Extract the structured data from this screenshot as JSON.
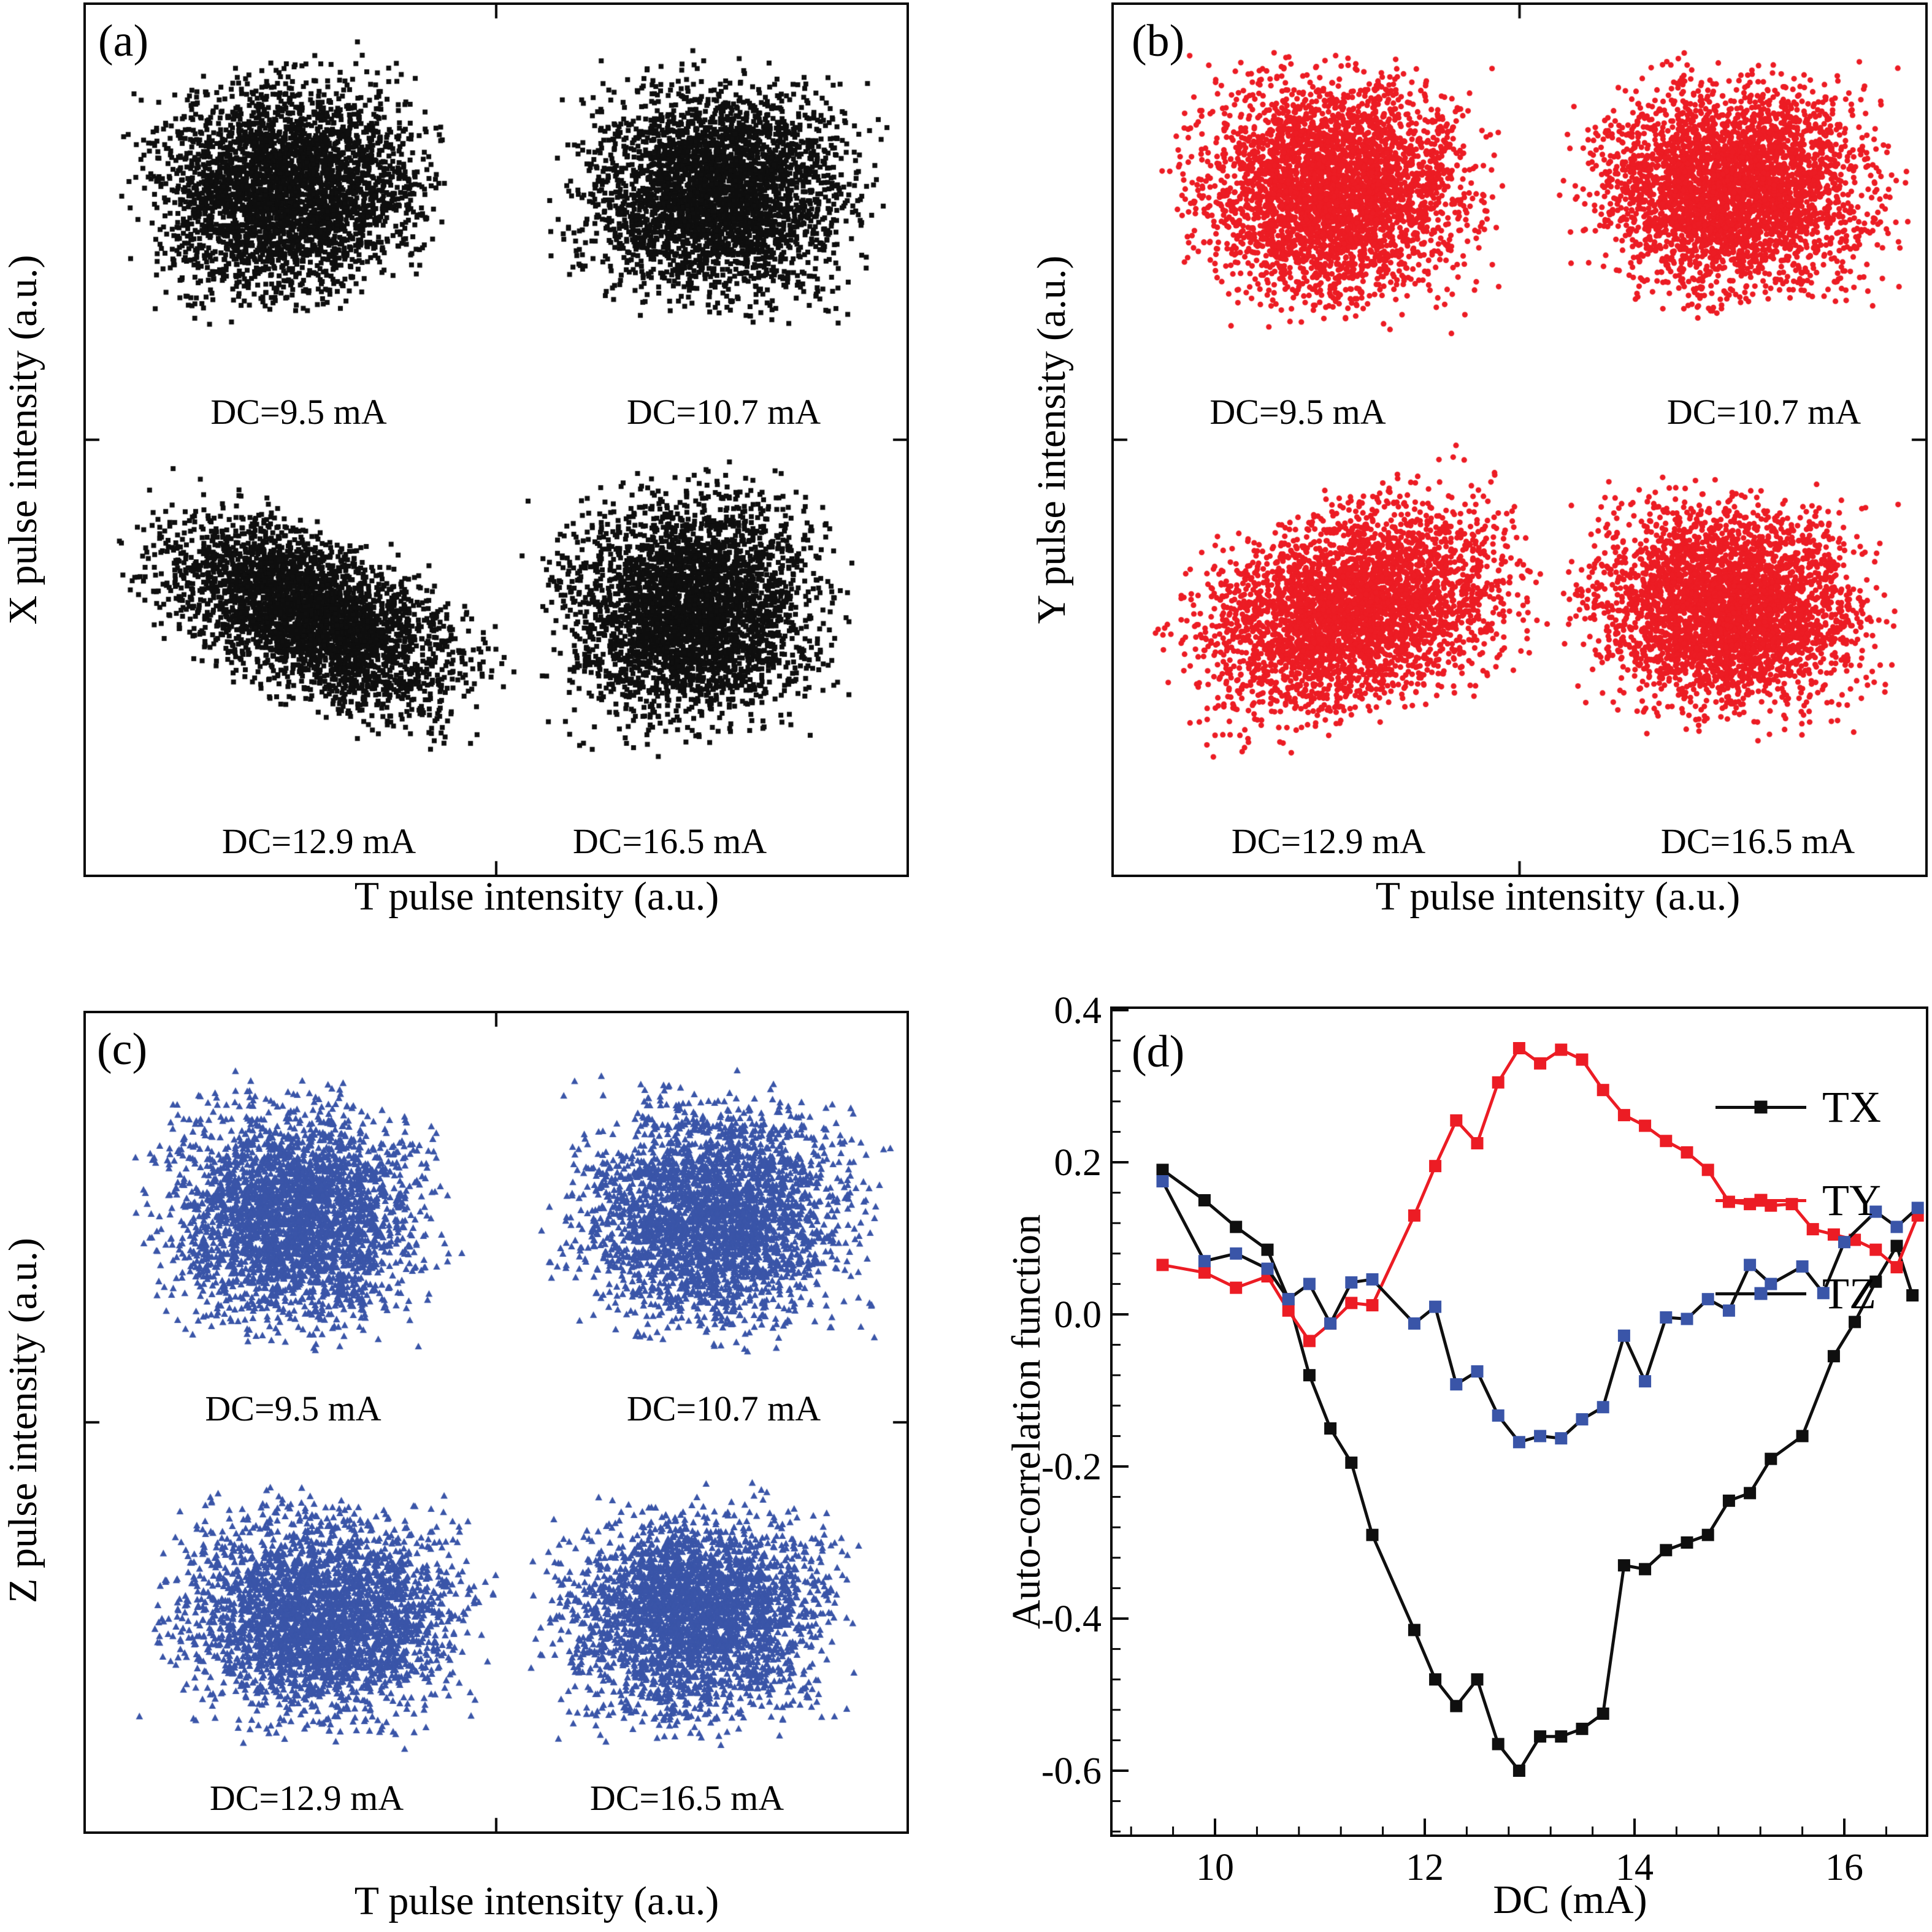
{
  "figure": {
    "dc_labels": [
      "DC=9.5 mA",
      "DC=10.7 mA",
      "DC=12.9 mA",
      "DC=16.5 mA"
    ],
    "colors": {
      "black_marker": "#0f0f0f",
      "red_marker": "#ec1c24",
      "blue_marker": "#3a55a8",
      "axis": "#0a0a0a"
    }
  },
  "chart_data": [
    {
      "type": "scatter",
      "panel_label": "(a)",
      "xlabel": "T pulse intensity (a.u.)",
      "ylabel": "X pulse intensity (a.u.)",
      "marker": "square",
      "color": "#0f0f0f",
      "clusters": [
        {
          "label": "DC=9.5 mA",
          "lx": 347,
          "ly": 664,
          "cx": 330,
          "cy": 300,
          "rx": 295,
          "ry": 235,
          "angle_deg": -10,
          "n": 3400
        },
        {
          "label": "DC=10.7 mA",
          "lx": 1040,
          "ly": 664,
          "cx": 1030,
          "cy": 305,
          "rx": 290,
          "ry": 240,
          "angle_deg": 6,
          "n": 3400
        },
        {
          "label": "DC=12.9 mA",
          "lx": 380,
          "ly": 1364,
          "cx": 370,
          "cy": 995,
          "rx": 360,
          "ry": 165,
          "angle_deg": 25,
          "n": 3400
        },
        {
          "label": "DC=16.5 mA",
          "lx": 952,
          "ly": 1364,
          "cx": 990,
          "cy": 985,
          "rx": 285,
          "ry": 250,
          "angle_deg": -6,
          "n": 3400
        }
      ]
    },
    {
      "type": "scatter",
      "panel_label": "(b)",
      "xlabel": "T pulse intensity (a.u.)",
      "ylabel": "Y pulse intensity (a.u.)",
      "marker": "circle",
      "color": "#ec1c24",
      "clusters": [
        {
          "label": "DC=9.5 mA",
          "lx": 300,
          "ly": 664,
          "cx": 360,
          "cy": 300,
          "rx": 295,
          "ry": 245,
          "angle_deg": 4,
          "n": 3600
        },
        {
          "label": "DC=10.7 mA",
          "lx": 1060,
          "ly": 664,
          "cx": 1010,
          "cy": 300,
          "rx": 300,
          "ry": 235,
          "angle_deg": 2,
          "n": 3600
        },
        {
          "label": "DC=12.9 mA",
          "lx": 350,
          "ly": 1364,
          "cx": 390,
          "cy": 985,
          "rx": 345,
          "ry": 210,
          "angle_deg": -20,
          "n": 3600
        },
        {
          "label": "DC=16.5 mA",
          "lx": 1050,
          "ly": 1364,
          "cx": 1000,
          "cy": 980,
          "rx": 300,
          "ry": 228,
          "angle_deg": 4,
          "n": 3600
        }
      ]
    },
    {
      "type": "scatter",
      "panel_label": "(c)",
      "xlabel": "T pulse intensity (a.u.)",
      "ylabel": "Z pulse intensity (a.u.)",
      "marker": "triangle",
      "color": "#3a55a8",
      "clusters": [
        {
          "label": "DC=9.5 mA",
          "lx": 338,
          "ly": 645,
          "cx": 340,
          "cy": 330,
          "rx": 282,
          "ry": 243,
          "angle_deg": 0,
          "n": 3000
        },
        {
          "label": "DC=10.7 mA",
          "lx": 1040,
          "ly": 645,
          "cx": 1025,
          "cy": 330,
          "rx": 300,
          "ry": 250,
          "angle_deg": 4,
          "n": 3000
        },
        {
          "label": "DC=12.9 mA",
          "lx": 360,
          "ly": 1280,
          "cx": 380,
          "cy": 985,
          "rx": 310,
          "ry": 232,
          "angle_deg": 4,
          "n": 3000
        },
        {
          "label": "DC=16.5 mA",
          "lx": 980,
          "ly": 1280,
          "cx": 995,
          "cy": 980,
          "rx": 295,
          "ry": 232,
          "angle_deg": -4,
          "n": 3000
        }
      ]
    },
    {
      "type": "line",
      "panel_label": "(d)",
      "xlabel": "DC (mA)",
      "ylabel": "Auto-correlation function",
      "xlim": [
        9.0,
        16.8
      ],
      "ylim": [
        -0.685,
        0.403
      ],
      "xticks": [
        10,
        12,
        14,
        16
      ],
      "xtick_labels": [
        "10",
        "12",
        "14",
        "16"
      ],
      "yticks": [
        0.4,
        0.2,
        0.0,
        -0.2,
        -0.4,
        -0.6
      ],
      "ytick_labels": [
        "0.4",
        "0.2",
        "0.0",
        "-0.2",
        "-0.4",
        "-0.6"
      ],
      "minor_x_step": 0.4,
      "minor_y_step": 0.04,
      "grid": false,
      "legend_position": "top-right-inside",
      "series": [
        {
          "name": "TX",
          "line_color": "#0f0f0f",
          "marker_color": "#0f0f0f",
          "points": [
            [
              9.5,
              0.19
            ],
            [
              9.9,
              0.15
            ],
            [
              10.2,
              0.115
            ],
            [
              10.5,
              0.085
            ],
            [
              10.7,
              0.02
            ],
            [
              10.9,
              -0.08
            ],
            [
              11.1,
              -0.15
            ],
            [
              11.3,
              -0.195
            ],
            [
              11.5,
              -0.29
            ],
            [
              11.9,
              -0.415
            ],
            [
              12.1,
              -0.48
            ],
            [
              12.3,
              -0.515
            ],
            [
              12.5,
              -0.48
            ],
            [
              12.7,
              -0.565
            ],
            [
              12.9,
              -0.6
            ],
            [
              13.1,
              -0.555
            ],
            [
              13.3,
              -0.555
            ],
            [
              13.5,
              -0.545
            ],
            [
              13.7,
              -0.525
            ],
            [
              13.9,
              -0.33
            ],
            [
              14.1,
              -0.335
            ],
            [
              14.3,
              -0.31
            ],
            [
              14.5,
              -0.3
            ],
            [
              14.7,
              -0.29
            ],
            [
              14.9,
              -0.245
            ],
            [
              15.1,
              -0.235
            ],
            [
              15.3,
              -0.19
            ],
            [
              15.6,
              -0.16
            ],
            [
              15.9,
              -0.055
            ],
            [
              16.1,
              -0.01
            ],
            [
              16.3,
              0.043
            ],
            [
              16.5,
              0.09
            ],
            [
              16.65,
              0.025
            ]
          ]
        },
        {
          "name": "TY",
          "line_color": "#ec1c24",
          "marker_color": "#ec1c24",
          "points": [
            [
              9.5,
              0.065
            ],
            [
              9.9,
              0.055
            ],
            [
              10.2,
              0.035
            ],
            [
              10.5,
              0.05
            ],
            [
              10.7,
              0.005
            ],
            [
              10.9,
              -0.035
            ],
            [
              11.1,
              -0.012
            ],
            [
              11.3,
              0.015
            ],
            [
              11.5,
              0.012
            ],
            [
              11.9,
              0.13
            ],
            [
              12.1,
              0.195
            ],
            [
              12.3,
              0.255
            ],
            [
              12.5,
              0.225
            ],
            [
              12.7,
              0.305
            ],
            [
              12.9,
              0.35
            ],
            [
              13.1,
              0.33
            ],
            [
              13.3,
              0.348
            ],
            [
              13.5,
              0.335
            ],
            [
              13.7,
              0.295
            ],
            [
              13.9,
              0.262
            ],
            [
              14.1,
              0.248
            ],
            [
              14.3,
              0.228
            ],
            [
              14.5,
              0.213
            ],
            [
              14.7,
              0.19
            ],
            [
              14.9,
              0.148
            ],
            [
              15.1,
              0.145
            ],
            [
              15.3,
              0.143
            ],
            [
              15.5,
              0.145
            ],
            [
              15.7,
              0.112
            ],
            [
              15.9,
              0.105
            ],
            [
              16.1,
              0.098
            ],
            [
              16.3,
              0.085
            ],
            [
              16.5,
              0.062
            ],
            [
              16.7,
              0.13
            ]
          ]
        },
        {
          "name": "TZ",
          "line_color": "#0f0f0f",
          "marker_color": "#3a55a8",
          "points": [
            [
              9.5,
              0.175
            ],
            [
              9.9,
              0.07
            ],
            [
              10.2,
              0.08
            ],
            [
              10.5,
              0.06
            ],
            [
              10.7,
              0.02
            ],
            [
              10.9,
              0.04
            ],
            [
              11.1,
              -0.012
            ],
            [
              11.3,
              0.042
            ],
            [
              11.5,
              0.046
            ],
            [
              11.9,
              -0.012
            ],
            [
              12.1,
              0.01
            ],
            [
              12.3,
              -0.092
            ],
            [
              12.5,
              -0.075
            ],
            [
              12.7,
              -0.133
            ],
            [
              12.9,
              -0.168
            ],
            [
              13.1,
              -0.16
            ],
            [
              13.3,
              -0.163
            ],
            [
              13.5,
              -0.138
            ],
            [
              13.7,
              -0.122
            ],
            [
              13.9,
              -0.028
            ],
            [
              14.1,
              -0.088
            ],
            [
              14.3,
              -0.004
            ],
            [
              14.5,
              -0.006
            ],
            [
              14.7,
              0.02
            ],
            [
              14.9,
              0.005
            ],
            [
              15.1,
              0.065
            ],
            [
              15.3,
              0.04
            ],
            [
              15.6,
              0.063
            ],
            [
              15.8,
              0.028
            ],
            [
              16.0,
              0.095
            ],
            [
              16.3,
              0.135
            ],
            [
              16.5,
              0.115
            ],
            [
              16.7,
              0.14
            ]
          ]
        }
      ]
    }
  ]
}
